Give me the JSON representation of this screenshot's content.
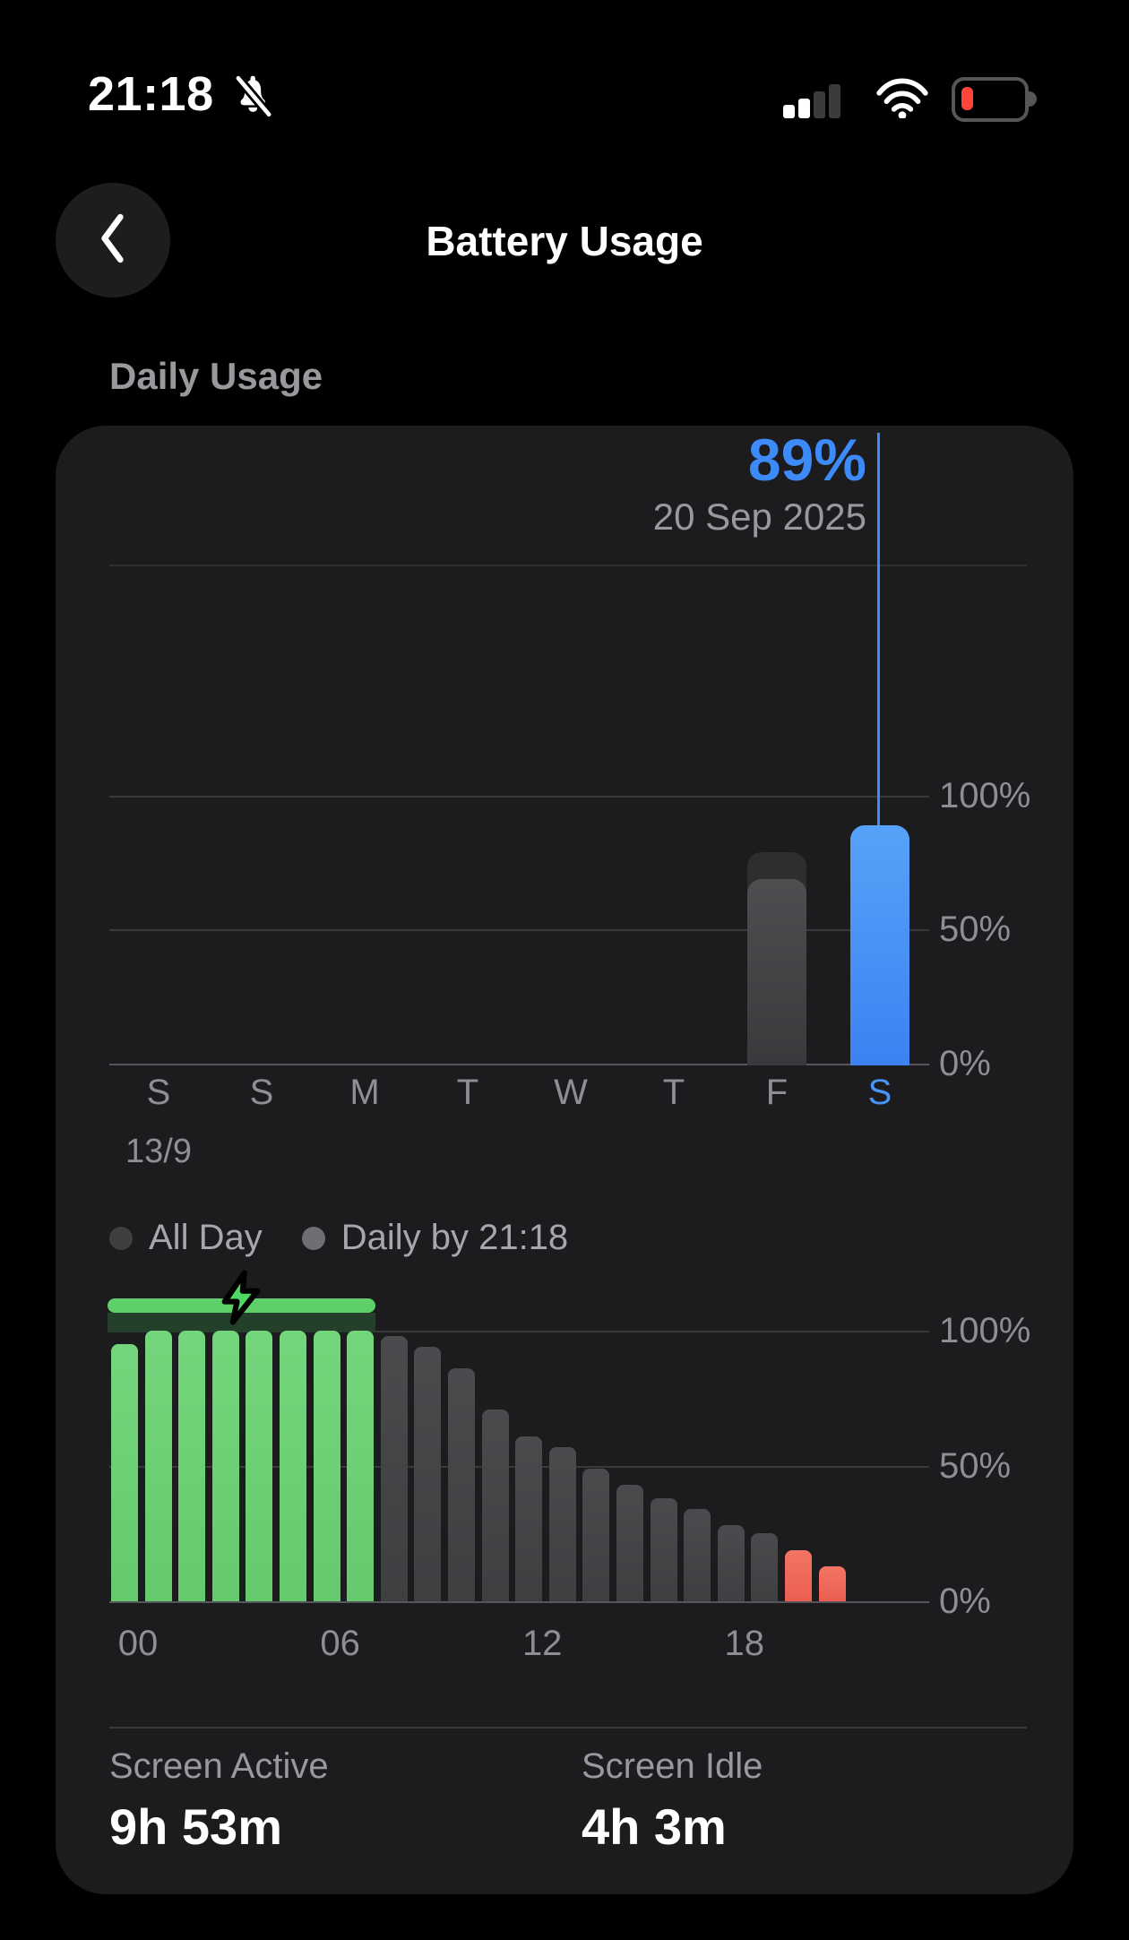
{
  "status_bar": {
    "time": "21:18",
    "silenced_icon": "bell-slash",
    "cellular": {
      "bars_active": 2,
      "bars_total": 4
    },
    "wifi": "full",
    "battery": {
      "level": "low"
    }
  },
  "header": {
    "title": "Battery Usage"
  },
  "section_title": "Daily Usage",
  "colors": {
    "card_bg": "#1c1c1e",
    "grid": "#39393c",
    "baseline": "#55555a",
    "accent_blue": "#3d8bf8",
    "charge_green": "#6ccf74",
    "low_red": "#ef6657",
    "bar_gray": "#47474a",
    "text_gray": "#8e8e93",
    "battery_red": "#ff453a"
  },
  "chart_data": [
    {
      "id": "weekly",
      "type": "bar",
      "title": "Daily Usage by day",
      "categories": [
        "S",
        "S",
        "M",
        "T",
        "W",
        "T",
        "F",
        "S"
      ],
      "start_date_label": "13/9",
      "highlight_day_index": 7,
      "y_ticks": [
        "100%",
        "50%",
        "0%"
      ],
      "ylim": [
        0,
        100
      ],
      "legend_position": "below",
      "grid": true,
      "bars": [
        {
          "day_index": 6,
          "all_day": 79,
          "by_now": 69
        },
        {
          "day_index": 7,
          "by_now": 89,
          "highlight": true
        }
      ],
      "callout": {
        "value": "89%",
        "date": "20 Sep 2025"
      }
    },
    {
      "id": "hourly",
      "type": "bar",
      "title": "Battery level by hour (today)",
      "x_hours": [
        0,
        1,
        2,
        3,
        4,
        5,
        6,
        7,
        8,
        9,
        10,
        11,
        12,
        13,
        14,
        15,
        16,
        17,
        18,
        19,
        20,
        21
      ],
      "values": [
        95,
        100,
        100,
        100,
        100,
        100,
        100,
        100,
        98,
        94,
        86,
        71,
        61,
        57,
        49,
        43,
        38,
        34,
        28,
        25,
        19,
        13
      ],
      "charge_hours": [
        0,
        7
      ],
      "low_hours": [
        20,
        21
      ],
      "x_ticks": [
        {
          "hour": 0,
          "label": "00"
        },
        {
          "hour": 6,
          "label": "06"
        },
        {
          "hour": 12,
          "label": "12"
        },
        {
          "hour": 18,
          "label": "18"
        }
      ],
      "y_ticks": [
        "100%",
        "50%",
        "0%"
      ],
      "ylim": [
        0,
        100
      ],
      "grid": true,
      "charging_indicator": {
        "from_hour": 0,
        "to_hour": 7,
        "icon": "bolt"
      }
    }
  ],
  "legend": {
    "items": [
      {
        "label": "All Day",
        "dot_color": "#3f3f42"
      },
      {
        "label": "Daily by 21:18",
        "dot_color": "#6e6e73"
      }
    ]
  },
  "stats": [
    {
      "label": "Screen Active",
      "value": "9h 53m"
    },
    {
      "label": "Screen Idle",
      "value": "4h 3m"
    }
  ]
}
